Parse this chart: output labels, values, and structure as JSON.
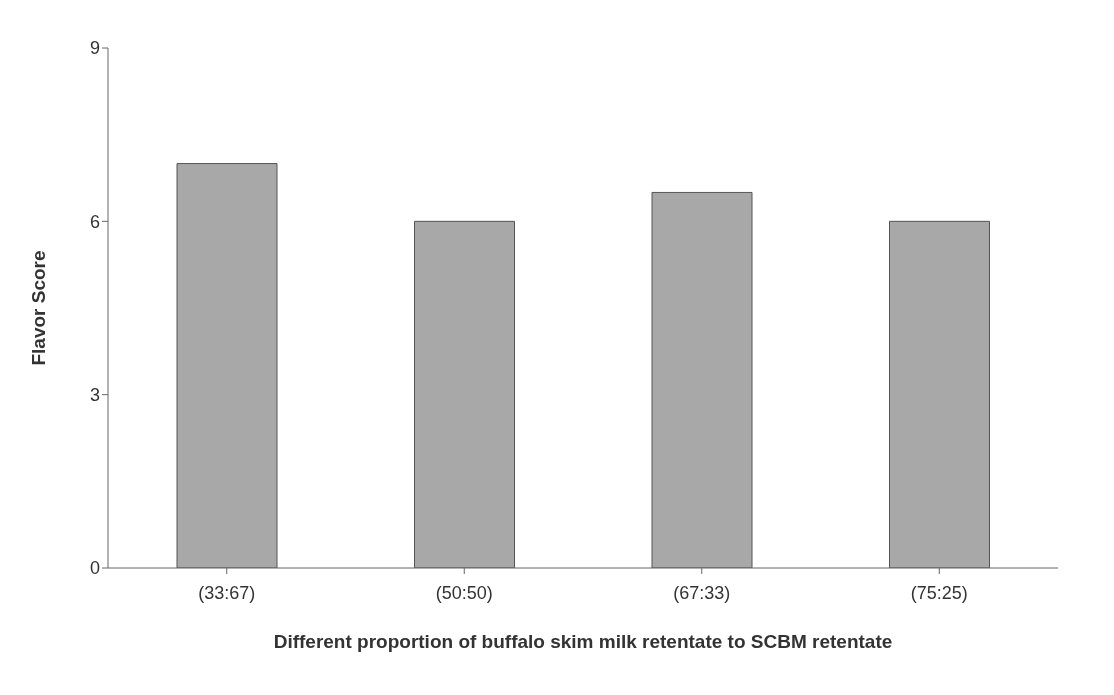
{
  "chart_data": {
    "type": "bar",
    "xlabel": "Different proportion of buffalo skim milk retentate to SCBM retentate",
    "ylabel": "Flavor Score",
    "categories": [
      "(33:67)",
      "(50:50)",
      "(67:33)",
      "(75:25)"
    ],
    "values": [
      7,
      6,
      6.5,
      6
    ],
    "color": "#a8a8a8",
    "ylim": [
      0,
      9
    ],
    "yticks": [
      0,
      3,
      6,
      9
    ],
    "grid": false
  }
}
